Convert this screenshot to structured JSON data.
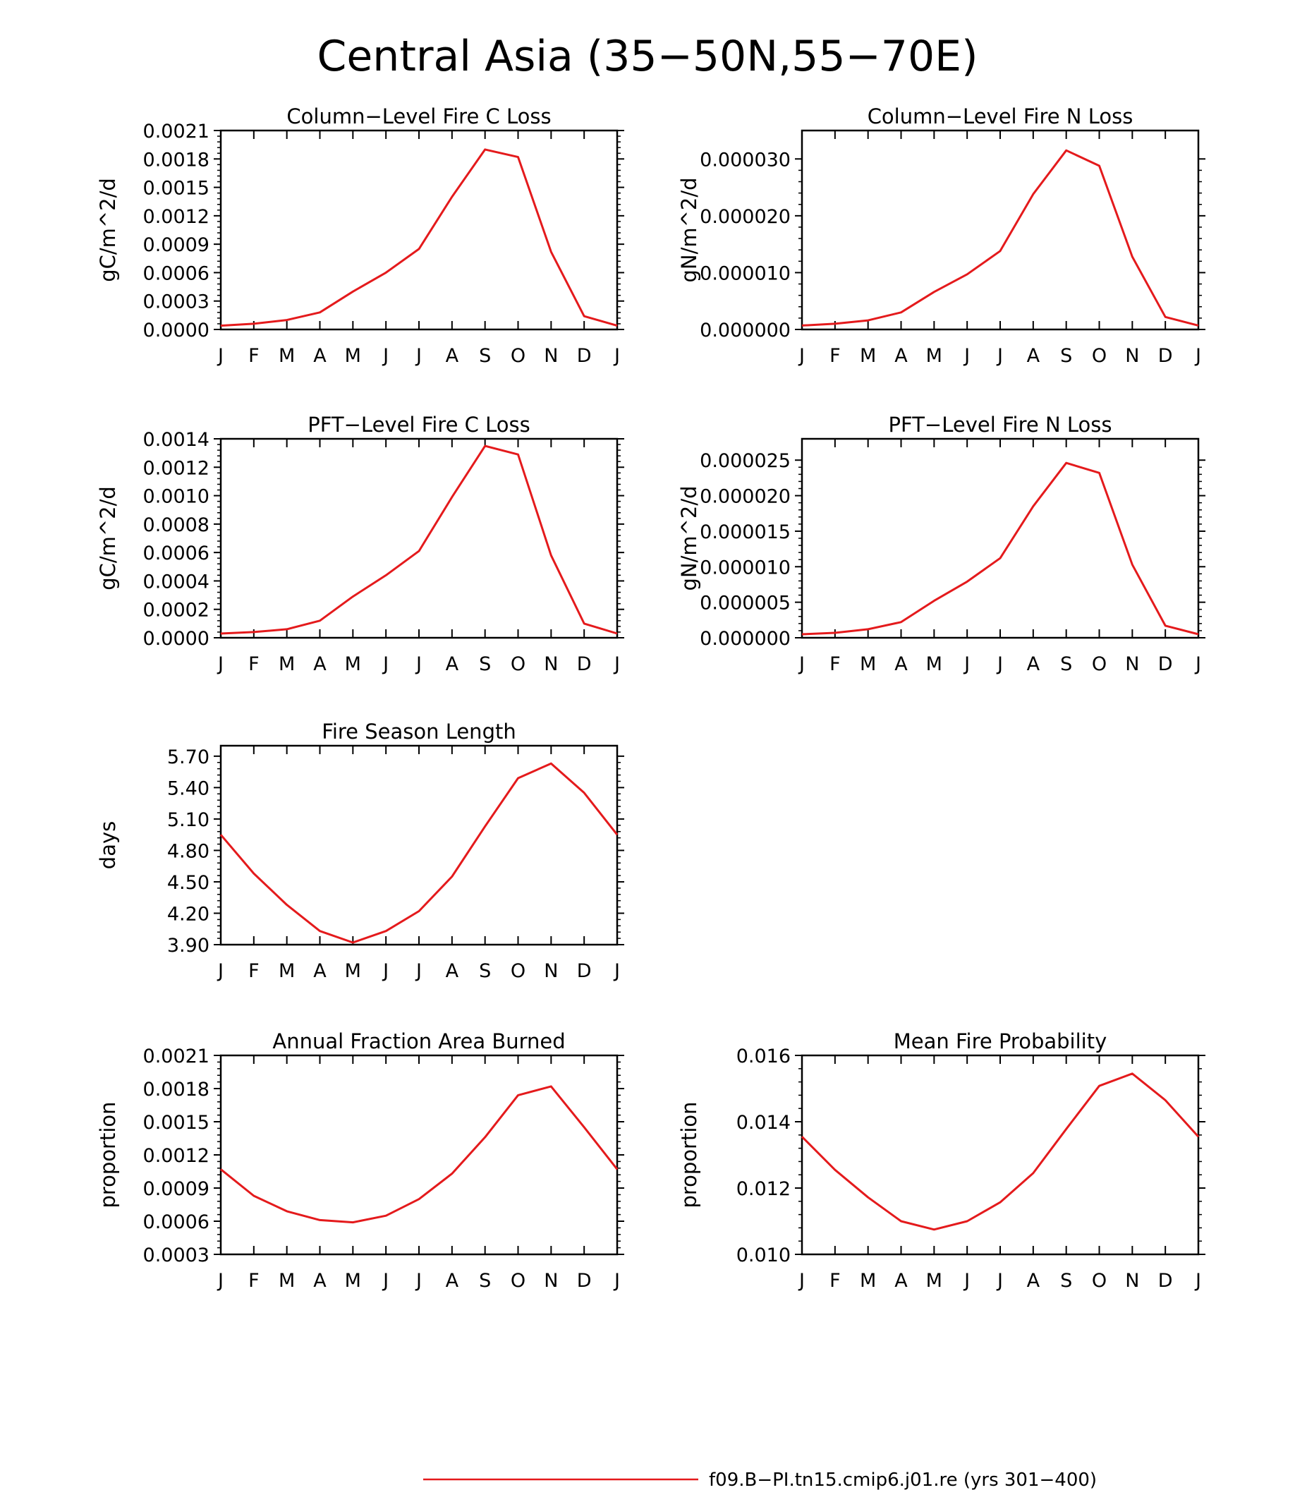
{
  "figure": {
    "title": "Central Asia (35−50N,55−70E)",
    "line_color": "#e41a1c"
  },
  "legend": {
    "label": "f09.B−PI.tn15.cmip6.j01.re (yrs 301−400)",
    "color": "#e41a1c"
  },
  "chart_data": [
    {
      "type": "line",
      "title": "Column−Level Fire C Loss",
      "xlabel": "",
      "ylabel": "gC/m^2/d",
      "categories": [
        "J",
        "F",
        "M",
        "A",
        "M",
        "J",
        "J",
        "A",
        "S",
        "O",
        "N",
        "D",
        "J"
      ],
      "ylim": [
        0,
        0.0021
      ],
      "yticks": [
        "0.0000",
        "0.0003",
        "0.0006",
        "0.0009",
        "0.0012",
        "0.0015",
        "0.0018",
        "0.0021"
      ],
      "series": [
        {
          "values": [
            4e-05,
            6e-05,
            0.0001,
            0.00018,
            0.0004,
            0.0006,
            0.00085,
            0.0014,
            0.0019,
            0.00182,
            0.00082,
            0.00014,
            4e-05
          ]
        }
      ]
    },
    {
      "type": "line",
      "title": "Column−Level Fire N Loss",
      "xlabel": "",
      "ylabel": "gN/m^2/d",
      "categories": [
        "J",
        "F",
        "M",
        "A",
        "M",
        "J",
        "J",
        "A",
        "S",
        "O",
        "N",
        "D",
        "J"
      ],
      "ylim": [
        0,
        3.5e-05
      ],
      "yticks": [
        "0.000000",
        "0.000010",
        "0.000020",
        "0.000030"
      ],
      "series": [
        {
          "values": [
            7e-07,
            1e-06,
            1.6e-06,
            3e-06,
            6.6e-06,
            9.7e-06,
            1.38e-05,
            2.38e-05,
            3.15e-05,
            2.88e-05,
            1.28e-05,
            2.2e-06,
            7e-07
          ]
        }
      ]
    },
    {
      "type": "line",
      "title": "PFT−Level Fire C Loss",
      "xlabel": "",
      "ylabel": "gC/m^2/d",
      "categories": [
        "J",
        "F",
        "M",
        "A",
        "M",
        "J",
        "J",
        "A",
        "S",
        "O",
        "N",
        "D",
        "J"
      ],
      "ylim": [
        0,
        0.0014
      ],
      "yticks": [
        "0.0000",
        "0.0002",
        "0.0004",
        "0.0006",
        "0.0008",
        "0.0010",
        "0.0012",
        "0.0014"
      ],
      "series": [
        {
          "values": [
            3e-05,
            4e-05,
            6e-05,
            0.00012,
            0.00029,
            0.00044,
            0.00061,
            0.00099,
            0.00135,
            0.00129,
            0.00058,
            0.0001,
            3e-05
          ]
        }
      ]
    },
    {
      "type": "line",
      "title": "PFT−Level Fire N Loss",
      "xlabel": "",
      "ylabel": "gN/m^2/d",
      "categories": [
        "J",
        "F",
        "M",
        "A",
        "M",
        "J",
        "J",
        "A",
        "S",
        "O",
        "N",
        "D",
        "J"
      ],
      "ylim": [
        0,
        2.8e-05
      ],
      "yticks": [
        "0.000000",
        "0.000005",
        "0.000010",
        "0.000015",
        "0.000020",
        "0.000025"
      ],
      "series": [
        {
          "values": [
            5e-07,
            7e-07,
            1.2e-06,
            2.2e-06,
            5.2e-06,
            7.9e-06,
            1.12e-05,
            1.85e-05,
            2.46e-05,
            2.32e-05,
            1.03e-05,
            1.7e-06,
            5e-07
          ]
        }
      ]
    },
    {
      "type": "line",
      "title": "Fire Season Length",
      "xlabel": "",
      "ylabel": "days",
      "categories": [
        "J",
        "F",
        "M",
        "A",
        "M",
        "J",
        "J",
        "A",
        "S",
        "O",
        "N",
        "D",
        "J"
      ],
      "ylim": [
        3.9,
        5.8
      ],
      "yticks": [
        "3.90",
        "4.20",
        "4.50",
        "4.80",
        "5.10",
        "5.40",
        "5.70"
      ],
      "series": [
        {
          "values": [
            4.95,
            4.58,
            4.28,
            4.03,
            3.92,
            4.03,
            4.22,
            4.55,
            5.03,
            5.49,
            5.63,
            5.35,
            4.95
          ]
        }
      ]
    },
    {
      "type": "line",
      "title": "Annual Fraction Area Burned",
      "xlabel": "",
      "ylabel": "proportion",
      "categories": [
        "J",
        "F",
        "M",
        "A",
        "M",
        "J",
        "J",
        "A",
        "S",
        "O",
        "N",
        "D",
        "J"
      ],
      "ylim": [
        0.0003,
        0.0021
      ],
      "yticks": [
        "0.0003",
        "0.0006",
        "0.0009",
        "0.0012",
        "0.0015",
        "0.0018",
        "0.0021"
      ],
      "series": [
        {
          "values": [
            0.00107,
            0.00083,
            0.00069,
            0.00061,
            0.00059,
            0.00065,
            0.0008,
            0.00103,
            0.00136,
            0.00174,
            0.00182,
            0.00145,
            0.00107
          ]
        }
      ]
    },
    {
      "type": "line",
      "title": "Mean Fire Probability",
      "xlabel": "",
      "ylabel": "proportion",
      "categories": [
        "J",
        "F",
        "M",
        "A",
        "M",
        "J",
        "J",
        "A",
        "S",
        "O",
        "N",
        "D",
        "J"
      ],
      "ylim": [
        0.01,
        0.016
      ],
      "yticks": [
        "0.010",
        "0.012",
        "0.014",
        "0.016"
      ],
      "series": [
        {
          "values": [
            0.01355,
            0.01255,
            0.01172,
            0.011,
            0.01075,
            0.011,
            0.01157,
            0.01245,
            0.01378,
            0.01508,
            0.01545,
            0.01465,
            0.01355
          ]
        }
      ]
    }
  ]
}
